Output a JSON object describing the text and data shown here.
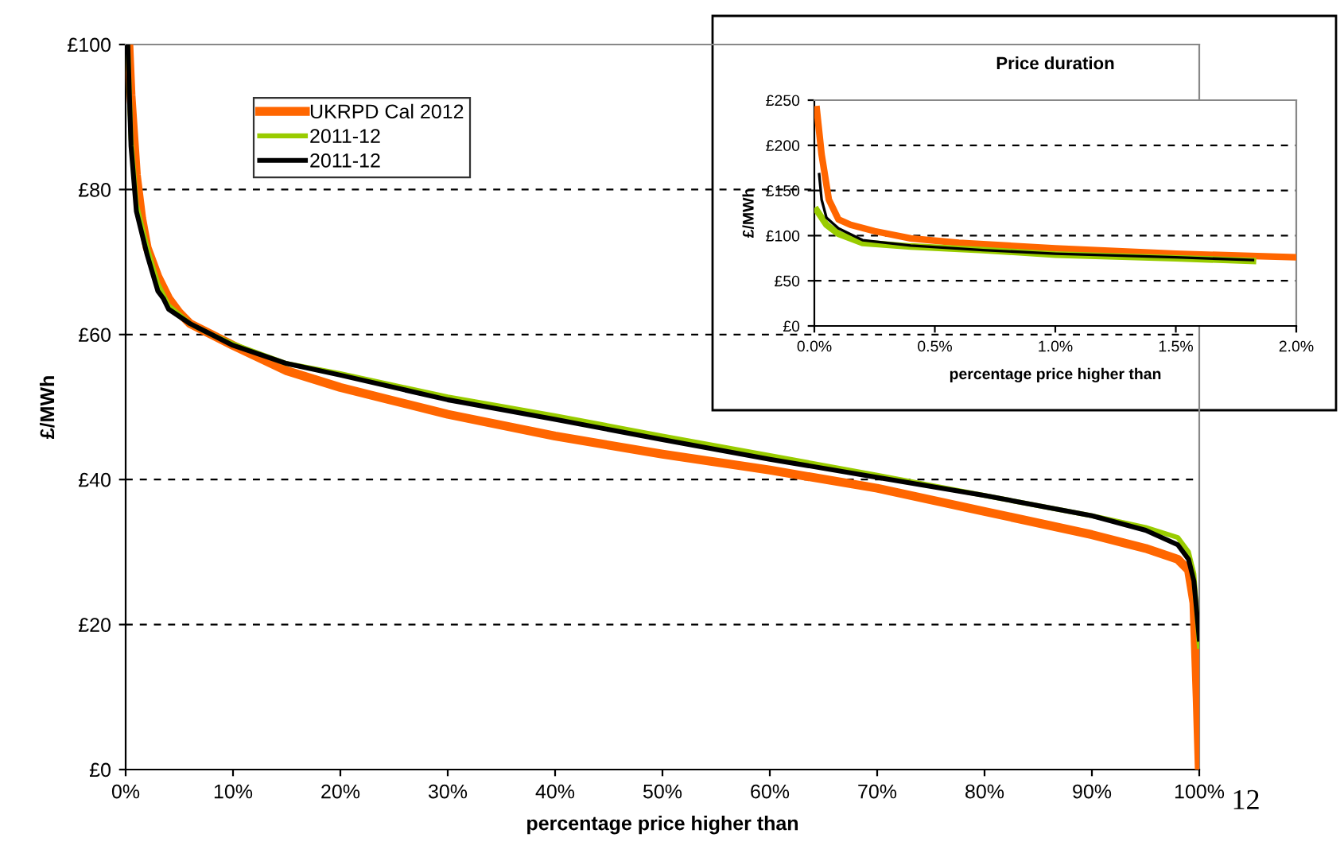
{
  "chart_data": [
    {
      "type": "line",
      "xlabel": "percentage price higher than",
      "ylabel": "£/MWh",
      "xlim": [
        0,
        100
      ],
      "ylim": [
        0,
        100
      ],
      "xticks": [
        {
          "value": 0,
          "label": "0%"
        },
        {
          "value": 10,
          "label": "10%"
        },
        {
          "value": 20,
          "label": "20%"
        },
        {
          "value": 30,
          "label": "30%"
        },
        {
          "value": 40,
          "label": "40%"
        },
        {
          "value": 50,
          "label": "50%"
        },
        {
          "value": 60,
          "label": "60%"
        },
        {
          "value": 70,
          "label": "70%"
        },
        {
          "value": 80,
          "label": "80%"
        },
        {
          "value": 90,
          "label": "90%"
        },
        {
          "value": 100,
          "label": "100%"
        }
      ],
      "yticks": [
        {
          "value": 0,
          "label": "£0"
        },
        {
          "value": 20,
          "label": "£20"
        },
        {
          "value": 40,
          "label": "£40"
        },
        {
          "value": 60,
          "label": "£60"
        },
        {
          "value": 80,
          "label": "£80"
        },
        {
          "value": 100,
          "label": "£100"
        }
      ],
      "grid": "y",
      "legend": "top left",
      "annotations": [
        "12"
      ],
      "series": [
        {
          "name": "UKRPD Cal 2012",
          "color": "#ff6600",
          "x": [
            0.3,
            0.5,
            1,
            1.5,
            2,
            3,
            4,
            5,
            6,
            8,
            10,
            15,
            20,
            30,
            40,
            50,
            60,
            70,
            80,
            90,
            95,
            98,
            99,
            99.5,
            99.8,
            100
          ],
          "values": [
            100,
            93,
            82,
            76,
            72,
            68,
            65,
            63,
            61.5,
            60,
            58.5,
            55,
            52.7,
            49,
            46,
            43.5,
            41.3,
            38.8,
            35.6,
            32.4,
            30.5,
            29,
            27.5,
            23,
            10,
            0
          ]
        },
        {
          "name": "2011-12",
          "color": "#99cc00",
          "x": [
            0.2,
            0.5,
            1,
            2,
            3,
            4,
            6,
            8,
            10,
            15,
            20,
            30,
            40,
            50,
            60,
            70,
            80,
            90,
            95,
            98,
            99,
            99.5,
            100
          ],
          "values": [
            100,
            87,
            78,
            72,
            67,
            64,
            61.5,
            60,
            58.7,
            56,
            54.6,
            51.4,
            48.8,
            46,
            43.3,
            40.6,
            37.8,
            35,
            33.4,
            32,
            30,
            27,
            17
          ]
        },
        {
          "name": "2011-12",
          "color": "#000000",
          "x": [
            0.2,
            0.5,
            1,
            2,
            3,
            3.5,
            4,
            6,
            8,
            10,
            15,
            20,
            30,
            40,
            50,
            60,
            70,
            80,
            90,
            95,
            98,
            99,
            99.5,
            100
          ],
          "values": [
            100,
            86,
            77,
            71,
            66,
            65,
            63.5,
            61.5,
            60,
            58.5,
            56,
            54.4,
            51,
            48.3,
            45.5,
            42.8,
            40.3,
            37.8,
            35,
            33,
            31,
            29,
            26,
            18
          ]
        }
      ]
    },
    {
      "type": "line",
      "title": "Price duration",
      "xlabel": "percentage price higher than",
      "ylabel": "£/MWh",
      "xlim": [
        0,
        2
      ],
      "ylim": [
        0,
        250
      ],
      "xticks": [
        {
          "value": 0,
          "label": "0.0%"
        },
        {
          "value": 0.5,
          "label": "0.5%"
        },
        {
          "value": 1,
          "label": "1.0%"
        },
        {
          "value": 1.5,
          "label": "1.5%"
        },
        {
          "value": 2,
          "label": "2.0%"
        }
      ],
      "yticks": [
        {
          "value": 0,
          "label": "£0"
        },
        {
          "value": 50,
          "label": "£50"
        },
        {
          "value": 100,
          "label": "£100"
        },
        {
          "value": 150,
          "label": "£150"
        },
        {
          "value": 200,
          "label": "£200"
        },
        {
          "value": 250,
          "label": "£250"
        }
      ],
      "grid": "y",
      "series": [
        {
          "color": "#ff6600",
          "x": [
            0.01,
            0.03,
            0.06,
            0.1,
            0.15,
            0.25,
            0.4,
            0.6,
            1.0,
            1.5,
            2.0
          ],
          "values": [
            240,
            190,
            140,
            118,
            112,
            105,
            97,
            92,
            86,
            80,
            76
          ]
        },
        {
          "color": "#99cc00",
          "x": [
            0.01,
            0.05,
            0.1,
            0.2,
            0.4,
            0.7,
            1.0,
            1.5,
            1.82
          ],
          "values": [
            128,
            112,
            102,
            92,
            88,
            84,
            79,
            75,
            72
          ]
        },
        {
          "color": "#000000",
          "x": [
            0.02,
            0.03,
            0.05,
            0.1,
            0.2,
            0.4,
            0.7,
            1.0,
            1.5,
            1.82
          ],
          "values": [
            168,
            140,
            120,
            108,
            95,
            89,
            84,
            80,
            76,
            73
          ]
        }
      ]
    }
  ]
}
